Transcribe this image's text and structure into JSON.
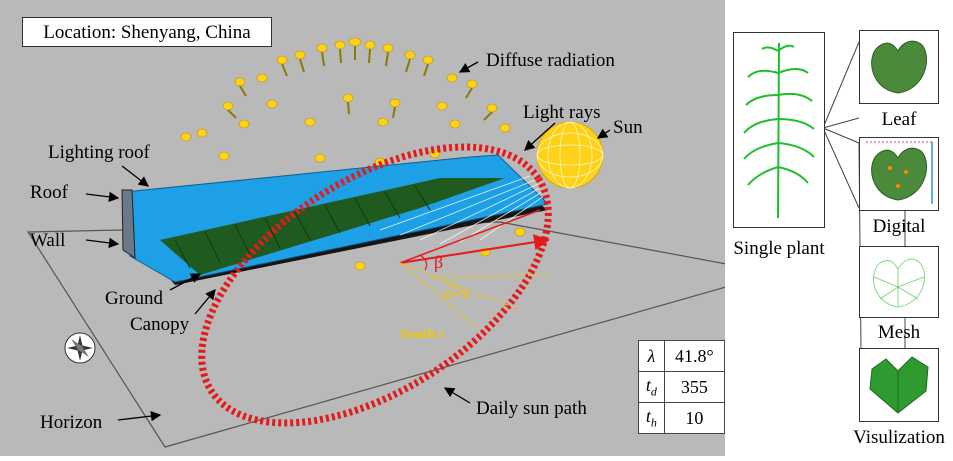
{
  "location": "Location: Shenyang, China",
  "labels": {
    "diffuse": "Diffuse radiation",
    "light_rays": "Light rays",
    "sun": "Sun",
    "lighting_roof": "Lighting roof",
    "roof": "Roof",
    "wall": "Wall",
    "ground": "Ground",
    "canopy": "Canopy",
    "horizon": "Horizon",
    "daily_sun_path": "Daily sun path",
    "beta": "β",
    "azimuth": "αs-π",
    "south": "South s"
  },
  "params": [
    {
      "symbol": "λ",
      "sub": "",
      "value": "41.8°"
    },
    {
      "symbol": "t",
      "sub": "d",
      "value": "355"
    },
    {
      "symbol": "t",
      "sub": "h",
      "value": "10"
    }
  ],
  "panels": {
    "single_plant": "Single plant",
    "leaf": "Leaf",
    "digital": "Digital",
    "mesh": "Mesh",
    "visualization": "Visulization"
  },
  "colors": {
    "sky_background": "#b9b9b9",
    "greenhouse_roof": "#1ea0e6",
    "canopy": "#1f5a1f",
    "sun": "#ffd21a",
    "sun_path": "#e41b1b",
    "azimuth_lines": "#f2c800"
  }
}
